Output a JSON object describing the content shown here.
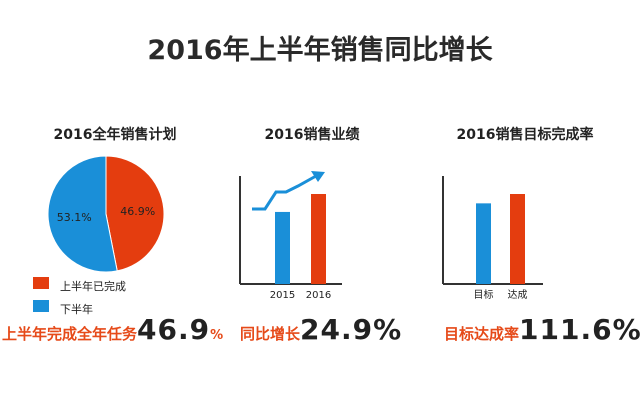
{
  "title": "2016年上半年销售同比增长",
  "colors": {
    "blue": "#1a8fd8",
    "orange": "#e43d0f",
    "text_orange": "#e64a19",
    "axis": "#333333",
    "trend": "#1a8fd8"
  },
  "chart_data": [
    {
      "type": "pie",
      "title": "2016全年销售计划",
      "slices": [
        {
          "label": "上半年已完成",
          "value": 46.9,
          "label_text": "46.9%",
          "color": "#e43d0f"
        },
        {
          "label": "下半年",
          "value": 53.1,
          "label_text": "53.1%",
          "color": "#1a8fd8"
        }
      ],
      "legend": [
        "上半年已完成",
        "下半年"
      ],
      "legend_position": "bottom"
    },
    {
      "type": "bar",
      "title": "2016销售业绩",
      "categories": [
        "2015",
        "2016"
      ],
      "values": [
        1.0,
        1.249
      ],
      "colors": [
        "#1a8fd8",
        "#e43d0f"
      ],
      "trend_arrow": true
    },
    {
      "type": "bar",
      "title": "2016销售目标完成率",
      "categories": [
        "目标",
        "达成"
      ],
      "values": [
        1.0,
        1.116
      ],
      "colors": [
        "#1a8fd8",
        "#e43d0f"
      ]
    }
  ],
  "stats": [
    {
      "label": "上半年完成全年任务",
      "number": "46.9",
      "suffix": "%"
    },
    {
      "label": "同比增长",
      "number": "24.9%",
      "suffix": ""
    },
    {
      "label": "目标达成率",
      "number": "111.6%",
      "suffix": ""
    }
  ]
}
